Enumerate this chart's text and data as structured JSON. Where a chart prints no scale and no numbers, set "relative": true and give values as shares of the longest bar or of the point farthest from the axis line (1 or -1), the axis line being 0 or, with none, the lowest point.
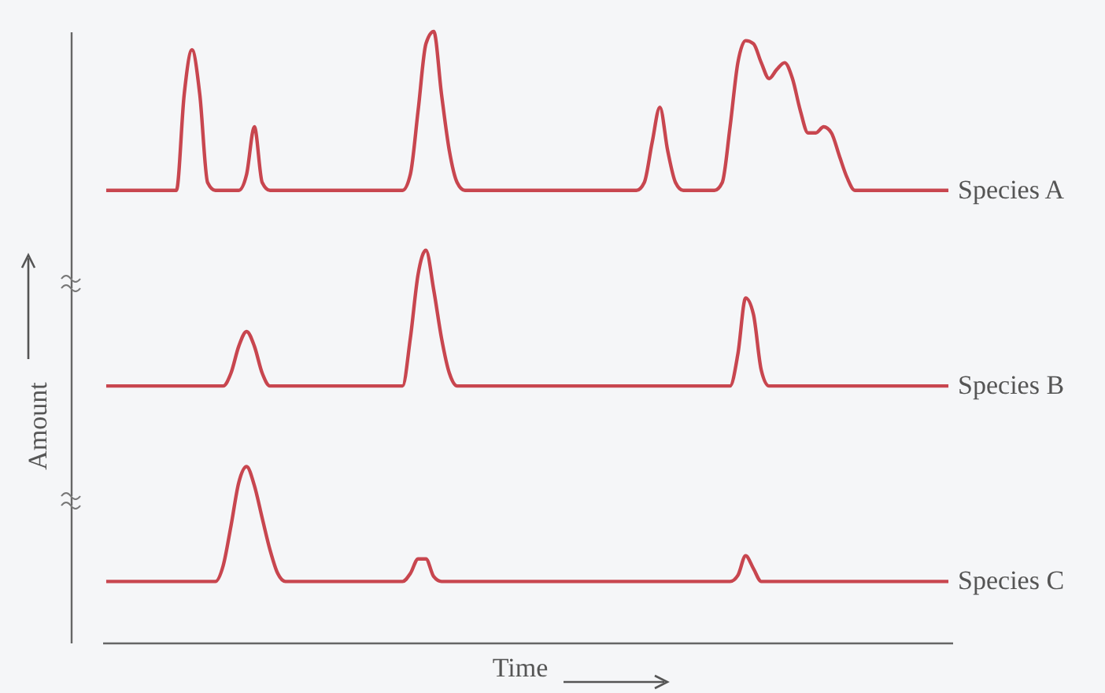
{
  "chart_data": {
    "type": "line",
    "relative": true,
    "xlabel": "Time",
    "ylabel": "Amount",
    "legend": false,
    "grid": false,
    "marker": "none",
    "line_style": "solid",
    "categories": [
      null,
      null,
      null,
      null,
      null,
      null,
      null,
      null,
      null,
      null,
      null,
      null,
      null,
      null,
      null,
      null,
      null,
      null,
      null,
      null,
      null,
      null,
      null,
      null,
      null,
      null,
      null,
      null,
      null,
      null,
      null,
      null,
      null,
      null,
      null,
      null,
      null,
      null,
      null,
      null,
      null,
      null,
      null,
      null,
      null,
      null,
      null,
      null,
      null,
      null,
      null,
      null,
      null,
      null,
      null,
      null,
      null,
      null,
      null,
      null,
      null,
      null,
      null,
      null,
      null,
      null,
      null,
      null,
      null,
      null,
      null,
      null,
      null,
      null,
      null,
      null,
      null,
      null,
      null,
      null,
      null,
      null,
      null,
      null,
      null,
      null,
      null,
      null,
      null,
      null,
      null,
      null,
      null,
      null,
      null,
      null,
      null,
      null,
      null,
      null,
      null,
      null,
      null,
      null,
      null,
      null,
      null,
      null,
      null
    ],
    "series": [
      {
        "name": "Species A",
        "color": "#c8464f",
        "values": [
          0.74,
          0.74,
          0.74,
          0.74,
          0.74,
          0.74,
          0.74,
          0.74,
          0.74,
          0.74,
          0.897,
          0.97,
          0.897,
          0.753,
          0.74,
          0.74,
          0.74,
          0.74,
          0.766,
          0.844,
          0.753,
          0.74,
          0.74,
          0.74,
          0.74,
          0.74,
          0.74,
          0.74,
          0.74,
          0.74,
          0.74,
          0.74,
          0.74,
          0.74,
          0.74,
          0.74,
          0.74,
          0.74,
          0.74,
          0.766,
          0.871,
          0.98,
          1.0,
          0.897,
          0.805,
          0.753,
          0.74,
          0.74,
          0.74,
          0.74,
          0.74,
          0.74,
          0.74,
          0.74,
          0.74,
          0.74,
          0.74,
          0.74,
          0.74,
          0.74,
          0.74,
          0.74,
          0.74,
          0.74,
          0.74,
          0.74,
          0.74,
          0.74,
          0.74,
          0.753,
          0.818,
          0.876,
          0.805,
          0.753,
          0.74,
          0.74,
          0.74,
          0.74,
          0.74,
          0.753,
          0.844,
          0.949,
          0.985,
          0.98,
          0.949,
          0.923,
          0.938,
          0.949,
          0.923,
          0.871,
          0.834,
          0.834,
          0.844,
          0.834,
          0.797,
          0.761,
          0.74,
          0.74,
          0.74,
          0.74,
          0.74,
          0.74,
          0.74,
          0.74,
          0.74,
          0.74,
          0.74,
          0.74,
          0.74
        ]
      },
      {
        "name": "Species B",
        "color": "#c8464f",
        "values": [
          0.42,
          0.42,
          0.42,
          0.42,
          0.42,
          0.42,
          0.42,
          0.42,
          0.42,
          0.42,
          0.42,
          0.42,
          0.42,
          0.42,
          0.42,
          0.42,
          0.441,
          0.485,
          0.509,
          0.485,
          0.441,
          0.42,
          0.42,
          0.42,
          0.42,
          0.42,
          0.42,
          0.42,
          0.42,
          0.42,
          0.42,
          0.42,
          0.42,
          0.42,
          0.42,
          0.42,
          0.42,
          0.42,
          0.42,
          0.498,
          0.603,
          0.642,
          0.577,
          0.498,
          0.441,
          0.42,
          0.42,
          0.42,
          0.42,
          0.42,
          0.42,
          0.42,
          0.42,
          0.42,
          0.42,
          0.42,
          0.42,
          0.42,
          0.42,
          0.42,
          0.42,
          0.42,
          0.42,
          0.42,
          0.42,
          0.42,
          0.42,
          0.42,
          0.42,
          0.42,
          0.42,
          0.42,
          0.42,
          0.42,
          0.42,
          0.42,
          0.42,
          0.42,
          0.42,
          0.42,
          0.42,
          0.472,
          0.564,
          0.537,
          0.446,
          0.42,
          0.42,
          0.42,
          0.42,
          0.42,
          0.42,
          0.42,
          0.42,
          0.42,
          0.42,
          0.42,
          0.42,
          0.42,
          0.42,
          0.42,
          0.42,
          0.42,
          0.42,
          0.42,
          0.42,
          0.42,
          0.42,
          0.42,
          0.42
        ]
      },
      {
        "name": "Species C",
        "color": "#c8464f",
        "values": [
          0.1,
          0.1,
          0.1,
          0.1,
          0.1,
          0.1,
          0.1,
          0.1,
          0.1,
          0.1,
          0.1,
          0.1,
          0.1,
          0.1,
          0.1,
          0.126,
          0.191,
          0.262,
          0.288,
          0.257,
          0.204,
          0.152,
          0.113,
          0.1,
          0.1,
          0.1,
          0.1,
          0.1,
          0.1,
          0.1,
          0.1,
          0.1,
          0.1,
          0.1,
          0.1,
          0.1,
          0.1,
          0.1,
          0.1,
          0.113,
          0.137,
          0.137,
          0.108,
          0.1,
          0.1,
          0.1,
          0.1,
          0.1,
          0.1,
          0.1,
          0.1,
          0.1,
          0.1,
          0.1,
          0.1,
          0.1,
          0.1,
          0.1,
          0.1,
          0.1,
          0.1,
          0.1,
          0.1,
          0.1,
          0.1,
          0.1,
          0.1,
          0.1,
          0.1,
          0.1,
          0.1,
          0.1,
          0.1,
          0.1,
          0.1,
          0.1,
          0.1,
          0.1,
          0.1,
          0.1,
          0.1,
          0.11,
          0.142,
          0.121,
          0.1,
          0.1,
          0.1,
          0.1,
          0.1,
          0.1,
          0.1,
          0.1,
          0.1,
          0.1,
          0.1,
          0.1,
          0.1,
          0.1,
          0.1,
          0.1,
          0.1,
          0.1,
          0.1,
          0.1,
          0.1,
          0.1,
          0.1,
          0.1,
          0.1
        ]
      }
    ]
  }
}
